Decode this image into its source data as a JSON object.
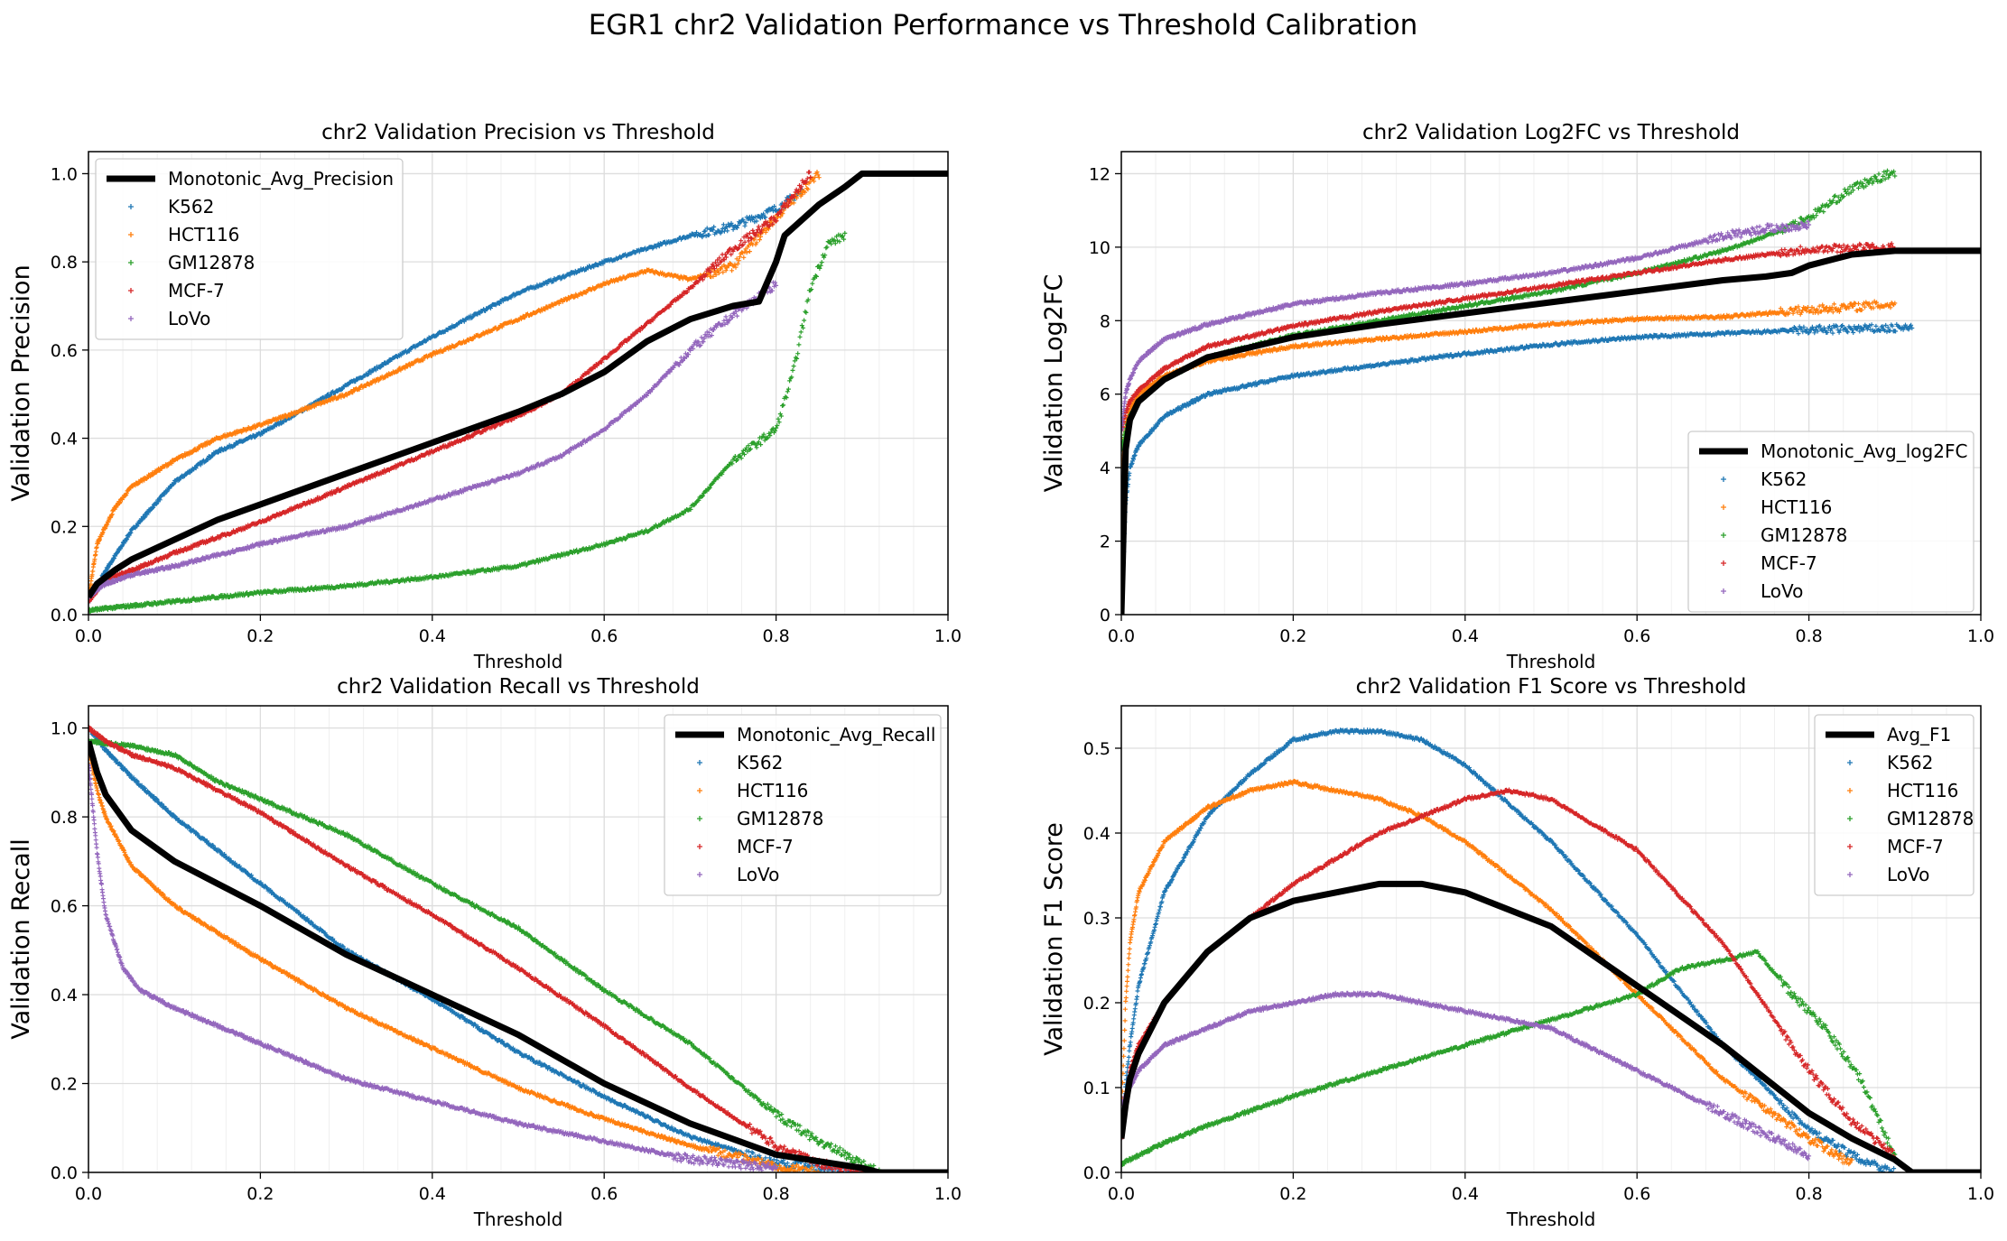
{
  "figure": {
    "suptitle": "EGR1 chr2 Validation Performance vs Threshold Calibration"
  },
  "series_colors": {
    "K562": "#1f77b4",
    "HCT116": "#ff7f0e",
    "GM12878": "#2ca02c",
    "MCF-7": "#d62728",
    "LoVo": "#9467bd",
    "avg": "#000000"
  },
  "chart_data": [
    {
      "type": "scatter",
      "title": "chr2 Validation Precision vs Threshold",
      "xlabel": "Threshold",
      "ylabel": "Validation Precision",
      "xlim": [
        0,
        1.0
      ],
      "ylim": [
        0,
        1.05
      ],
      "xticks": [
        "0.0",
        "0.2",
        "0.4",
        "0.6",
        "0.8",
        "1.0"
      ],
      "yticks": [
        "0.0",
        "0.2",
        "0.4",
        "0.6",
        "0.8",
        "1.0"
      ],
      "grid": true,
      "legend": "upper left",
      "series": [
        {
          "name": "Monotonic_Avg_Precision",
          "kind": "line",
          "color": "#000000",
          "x": [
            0,
            0.01,
            0.03,
            0.05,
            0.1,
            0.15,
            0.2,
            0.3,
            0.4,
            0.5,
            0.55,
            0.6,
            0.65,
            0.7,
            0.75,
            0.78,
            0.8,
            0.81,
            0.85,
            0.88,
            0.9,
            1.0
          ],
          "y": [
            0.04,
            0.07,
            0.1,
            0.125,
            0.17,
            0.215,
            0.25,
            0.32,
            0.39,
            0.46,
            0.5,
            0.55,
            0.62,
            0.67,
            0.7,
            0.71,
            0.8,
            0.86,
            0.93,
            0.97,
            1.0,
            1.0
          ]
        },
        {
          "name": "K562",
          "kind": "marker",
          "color": "#1f77b4",
          "x": [
            0,
            0.02,
            0.05,
            0.1,
            0.15,
            0.2,
            0.3,
            0.4,
            0.5,
            0.6,
            0.65,
            0.7,
            0.75,
            0.8,
            0.83
          ],
          "y": [
            0.03,
            0.1,
            0.19,
            0.3,
            0.37,
            0.41,
            0.52,
            0.63,
            0.73,
            0.8,
            0.83,
            0.86,
            0.88,
            0.92,
            0.96
          ]
        },
        {
          "name": "HCT116",
          "kind": "marker",
          "color": "#ff7f0e",
          "x": [
            0,
            0.01,
            0.03,
            0.05,
            0.1,
            0.15,
            0.2,
            0.3,
            0.4,
            0.5,
            0.6,
            0.65,
            0.7,
            0.75,
            0.8,
            0.85
          ],
          "y": [
            0.04,
            0.16,
            0.24,
            0.29,
            0.35,
            0.4,
            0.43,
            0.5,
            0.59,
            0.67,
            0.75,
            0.78,
            0.76,
            0.79,
            0.9,
            1.0
          ]
        },
        {
          "name": "GM12878",
          "kind": "marker",
          "color": "#2ca02c",
          "x": [
            0,
            0.1,
            0.2,
            0.3,
            0.4,
            0.5,
            0.6,
            0.65,
            0.7,
            0.75,
            0.8,
            0.82,
            0.84,
            0.86,
            0.88
          ],
          "y": [
            0.01,
            0.03,
            0.05,
            0.065,
            0.085,
            0.11,
            0.16,
            0.19,
            0.24,
            0.35,
            0.42,
            0.55,
            0.74,
            0.84,
            0.86
          ]
        },
        {
          "name": "MCF-7",
          "kind": "marker",
          "color": "#d62728",
          "x": [
            0,
            0.02,
            0.05,
            0.1,
            0.2,
            0.3,
            0.4,
            0.5,
            0.55,
            0.6,
            0.65,
            0.7,
            0.75,
            0.8,
            0.84
          ],
          "y": [
            0.03,
            0.08,
            0.1,
            0.14,
            0.21,
            0.29,
            0.37,
            0.45,
            0.5,
            0.58,
            0.66,
            0.74,
            0.83,
            0.9,
            1.0
          ]
        },
        {
          "name": "LoVo",
          "kind": "marker",
          "color": "#9467bd",
          "x": [
            0,
            0.02,
            0.05,
            0.1,
            0.2,
            0.3,
            0.4,
            0.5,
            0.55,
            0.6,
            0.65,
            0.7,
            0.75,
            0.8
          ],
          "y": [
            0.04,
            0.07,
            0.09,
            0.11,
            0.16,
            0.2,
            0.26,
            0.32,
            0.36,
            0.42,
            0.5,
            0.6,
            0.68,
            0.75
          ]
        }
      ]
    },
    {
      "type": "scatter",
      "title": "chr2 Validation Log2FC vs Threshold",
      "xlabel": "Threshold",
      "ylabel": "Validation Log2FC",
      "xlim": [
        0,
        1.0
      ],
      "ylim": [
        0,
        12.6
      ],
      "xticks": [
        "0.0",
        "0.2",
        "0.4",
        "0.6",
        "0.8",
        "1.0"
      ],
      "yticks": [
        "0",
        "2",
        "4",
        "6",
        "8",
        "10",
        "12"
      ],
      "grid": true,
      "legend": "lower right",
      "series": [
        {
          "name": "Monotonic_Avg_log2FC",
          "kind": "line",
          "color": "#000000",
          "x": [
            0,
            0.005,
            0.01,
            0.02,
            0.05,
            0.1,
            0.2,
            0.3,
            0.4,
            0.5,
            0.6,
            0.7,
            0.75,
            0.78,
            0.8,
            0.85,
            0.9,
            1.0
          ],
          "y": [
            0,
            4.5,
            5.3,
            5.8,
            6.4,
            7.0,
            7.55,
            7.9,
            8.2,
            8.5,
            8.8,
            9.1,
            9.2,
            9.3,
            9.5,
            9.8,
            9.9,
            9.9
          ]
        },
        {
          "name": "K562",
          "kind": "marker",
          "color": "#1f77b4",
          "x": [
            0,
            0.005,
            0.01,
            0.02,
            0.05,
            0.1,
            0.2,
            0.3,
            0.4,
            0.5,
            0.6,
            0.7,
            0.8,
            0.92
          ],
          "y": [
            0,
            3.0,
            4.0,
            4.6,
            5.4,
            6.0,
            6.5,
            6.8,
            7.1,
            7.35,
            7.55,
            7.65,
            7.75,
            7.8
          ]
        },
        {
          "name": "HCT116",
          "kind": "marker",
          "color": "#ff7f0e",
          "x": [
            0,
            0.005,
            0.01,
            0.02,
            0.05,
            0.1,
            0.2,
            0.3,
            0.4,
            0.5,
            0.6,
            0.7,
            0.8,
            0.9
          ],
          "y": [
            4.0,
            5.2,
            5.6,
            6.0,
            6.5,
            6.9,
            7.3,
            7.5,
            7.7,
            7.9,
            8.05,
            8.1,
            8.3,
            8.45
          ]
        },
        {
          "name": "GM12878",
          "kind": "marker",
          "color": "#2ca02c",
          "x": [
            0,
            0.005,
            0.01,
            0.02,
            0.05,
            0.1,
            0.2,
            0.3,
            0.4,
            0.5,
            0.6,
            0.7,
            0.75,
            0.8,
            0.85,
            0.9
          ],
          "y": [
            4.5,
            5.0,
            5.4,
            5.8,
            6.4,
            7.0,
            7.6,
            8.0,
            8.4,
            8.8,
            9.3,
            9.9,
            10.3,
            10.8,
            11.6,
            12.05
          ]
        },
        {
          "name": "MCF-7",
          "kind": "marker",
          "color": "#d62728",
          "x": [
            0,
            0.005,
            0.01,
            0.02,
            0.05,
            0.1,
            0.2,
            0.3,
            0.4,
            0.5,
            0.6,
            0.7,
            0.8,
            0.9
          ],
          "y": [
            5.0,
            5.5,
            5.8,
            6.1,
            6.7,
            7.3,
            7.85,
            8.25,
            8.6,
            8.95,
            9.3,
            9.65,
            9.95,
            10.0
          ]
        },
        {
          "name": "LoVo",
          "kind": "marker",
          "color": "#9467bd",
          "x": [
            0,
            0.005,
            0.01,
            0.02,
            0.05,
            0.1,
            0.2,
            0.3,
            0.4,
            0.5,
            0.6,
            0.65,
            0.7,
            0.75,
            0.8
          ],
          "y": [
            5.0,
            6.0,
            6.4,
            6.9,
            7.5,
            7.9,
            8.45,
            8.75,
            9.0,
            9.3,
            9.7,
            10.0,
            10.3,
            10.5,
            10.6
          ]
        }
      ]
    },
    {
      "type": "scatter",
      "title": "chr2 Validation Recall vs Threshold",
      "xlabel": "Threshold",
      "ylabel": "Validation Recall",
      "xlim": [
        0,
        1.0
      ],
      "ylim": [
        0,
        1.05
      ],
      "xticks": [
        "0.0",
        "0.2",
        "0.4",
        "0.6",
        "0.8",
        "1.0"
      ],
      "yticks": [
        "0.0",
        "0.2",
        "0.4",
        "0.6",
        "0.8",
        "1.0"
      ],
      "grid": true,
      "legend": "upper right",
      "series": [
        {
          "name": "Monotonic_Avg_Recall",
          "kind": "line",
          "color": "#000000",
          "x": [
            0,
            0.01,
            0.02,
            0.05,
            0.1,
            0.15,
            0.2,
            0.3,
            0.4,
            0.5,
            0.6,
            0.7,
            0.8,
            0.9,
            0.92,
            1.0
          ],
          "y": [
            0.97,
            0.9,
            0.85,
            0.77,
            0.7,
            0.65,
            0.6,
            0.49,
            0.4,
            0.31,
            0.2,
            0.11,
            0.04,
            0.01,
            0.0,
            0.0
          ]
        },
        {
          "name": "K562",
          "kind": "marker",
          "color": "#1f77b4",
          "x": [
            0,
            0.02,
            0.05,
            0.1,
            0.2,
            0.3,
            0.4,
            0.5,
            0.6,
            0.7,
            0.8,
            0.85,
            0.9
          ],
          "y": [
            1.0,
            0.95,
            0.89,
            0.8,
            0.65,
            0.5,
            0.39,
            0.27,
            0.17,
            0.08,
            0.02,
            0.01,
            0.0
          ]
        },
        {
          "name": "HCT116",
          "kind": "marker",
          "color": "#ff7f0e",
          "x": [
            0,
            0.01,
            0.02,
            0.05,
            0.1,
            0.2,
            0.3,
            0.4,
            0.5,
            0.6,
            0.7,
            0.8,
            0.85
          ],
          "y": [
            0.95,
            0.86,
            0.8,
            0.69,
            0.6,
            0.48,
            0.37,
            0.28,
            0.19,
            0.12,
            0.06,
            0.015,
            0.0
          ]
        },
        {
          "name": "GM12878",
          "kind": "marker",
          "color": "#2ca02c",
          "x": [
            0,
            0.05,
            0.1,
            0.15,
            0.2,
            0.3,
            0.4,
            0.5,
            0.6,
            0.7,
            0.8,
            0.85,
            0.9,
            0.92
          ],
          "y": [
            0.97,
            0.96,
            0.94,
            0.88,
            0.84,
            0.76,
            0.65,
            0.55,
            0.41,
            0.29,
            0.13,
            0.07,
            0.02,
            0.0
          ]
        },
        {
          "name": "MCF-7",
          "kind": "marker",
          "color": "#d62728",
          "x": [
            0,
            0.02,
            0.05,
            0.1,
            0.2,
            0.3,
            0.4,
            0.5,
            0.6,
            0.7,
            0.8,
            0.85,
            0.9
          ],
          "y": [
            1.0,
            0.97,
            0.94,
            0.91,
            0.81,
            0.69,
            0.58,
            0.46,
            0.33,
            0.19,
            0.06,
            0.02,
            0.0
          ]
        },
        {
          "name": "LoVo",
          "kind": "marker",
          "color": "#9467bd",
          "x": [
            0,
            0.01,
            0.02,
            0.04,
            0.06,
            0.1,
            0.2,
            0.3,
            0.4,
            0.5,
            0.6,
            0.7,
            0.8
          ],
          "y": [
            0.92,
            0.72,
            0.58,
            0.46,
            0.41,
            0.37,
            0.29,
            0.21,
            0.16,
            0.11,
            0.07,
            0.03,
            0.01
          ]
        }
      ]
    },
    {
      "type": "scatter",
      "title": "chr2 Validation F1 Score vs Threshold",
      "xlabel": "Threshold",
      "ylabel": "Validation F1 Score",
      "xlim": [
        0,
        1.0
      ],
      "ylim": [
        0,
        0.55
      ],
      "xticks": [
        "0.0",
        "0.2",
        "0.4",
        "0.6",
        "0.8",
        "1.0"
      ],
      "yticks": [
        "0.0",
        "0.1",
        "0.2",
        "0.3",
        "0.4",
        "0.5"
      ],
      "grid": true,
      "legend": "upper right",
      "series": [
        {
          "name": "Avg_F1",
          "kind": "line",
          "color": "#000000",
          "x": [
            0,
            0.005,
            0.01,
            0.02,
            0.05,
            0.1,
            0.15,
            0.2,
            0.3,
            0.35,
            0.4,
            0.5,
            0.6,
            0.7,
            0.8,
            0.85,
            0.9,
            0.92,
            1.0
          ],
          "y": [
            0.04,
            0.08,
            0.11,
            0.14,
            0.2,
            0.26,
            0.3,
            0.32,
            0.34,
            0.34,
            0.33,
            0.29,
            0.22,
            0.15,
            0.07,
            0.04,
            0.015,
            0.0,
            0.0
          ]
        },
        {
          "name": "K562",
          "kind": "marker",
          "color": "#1f77b4",
          "x": [
            0,
            0.005,
            0.01,
            0.02,
            0.05,
            0.1,
            0.15,
            0.2,
            0.25,
            0.3,
            0.35,
            0.4,
            0.5,
            0.6,
            0.7,
            0.8,
            0.85,
            0.9
          ],
          "y": [
            0.04,
            0.1,
            0.15,
            0.22,
            0.33,
            0.42,
            0.47,
            0.51,
            0.52,
            0.52,
            0.51,
            0.48,
            0.39,
            0.28,
            0.15,
            0.05,
            0.02,
            0.0
          ]
        },
        {
          "name": "HCT116",
          "kind": "marker",
          "color": "#ff7f0e",
          "x": [
            0,
            0.005,
            0.01,
            0.02,
            0.05,
            0.1,
            0.15,
            0.2,
            0.25,
            0.3,
            0.35,
            0.4,
            0.5,
            0.6,
            0.7,
            0.8,
            0.85
          ],
          "y": [
            0.06,
            0.2,
            0.27,
            0.33,
            0.39,
            0.43,
            0.45,
            0.46,
            0.45,
            0.44,
            0.42,
            0.39,
            0.31,
            0.21,
            0.11,
            0.04,
            0.01
          ]
        },
        {
          "name": "GM12878",
          "kind": "marker",
          "color": "#2ca02c",
          "x": [
            0,
            0.02,
            0.05,
            0.1,
            0.2,
            0.3,
            0.4,
            0.5,
            0.6,
            0.65,
            0.7,
            0.74,
            0.78,
            0.82,
            0.86,
            0.9
          ],
          "y": [
            0.01,
            0.02,
            0.035,
            0.055,
            0.09,
            0.12,
            0.15,
            0.18,
            0.21,
            0.24,
            0.25,
            0.26,
            0.21,
            0.17,
            0.11,
            0.02
          ]
        },
        {
          "name": "MCF-7",
          "kind": "marker",
          "color": "#d62728",
          "x": [
            0,
            0.01,
            0.02,
            0.05,
            0.1,
            0.2,
            0.3,
            0.4,
            0.45,
            0.5,
            0.55,
            0.6,
            0.7,
            0.8,
            0.85,
            0.9
          ],
          "y": [
            0.04,
            0.12,
            0.15,
            0.2,
            0.26,
            0.34,
            0.4,
            0.44,
            0.45,
            0.44,
            0.41,
            0.38,
            0.27,
            0.12,
            0.06,
            0.02
          ]
        },
        {
          "name": "LoVo",
          "kind": "marker",
          "color": "#9467bd",
          "x": [
            0,
            0.01,
            0.02,
            0.05,
            0.1,
            0.15,
            0.2,
            0.25,
            0.3,
            0.35,
            0.4,
            0.5,
            0.6,
            0.7,
            0.8
          ],
          "y": [
            0.08,
            0.1,
            0.12,
            0.15,
            0.17,
            0.19,
            0.2,
            0.21,
            0.21,
            0.2,
            0.19,
            0.17,
            0.12,
            0.07,
            0.02
          ]
        }
      ]
    }
  ]
}
